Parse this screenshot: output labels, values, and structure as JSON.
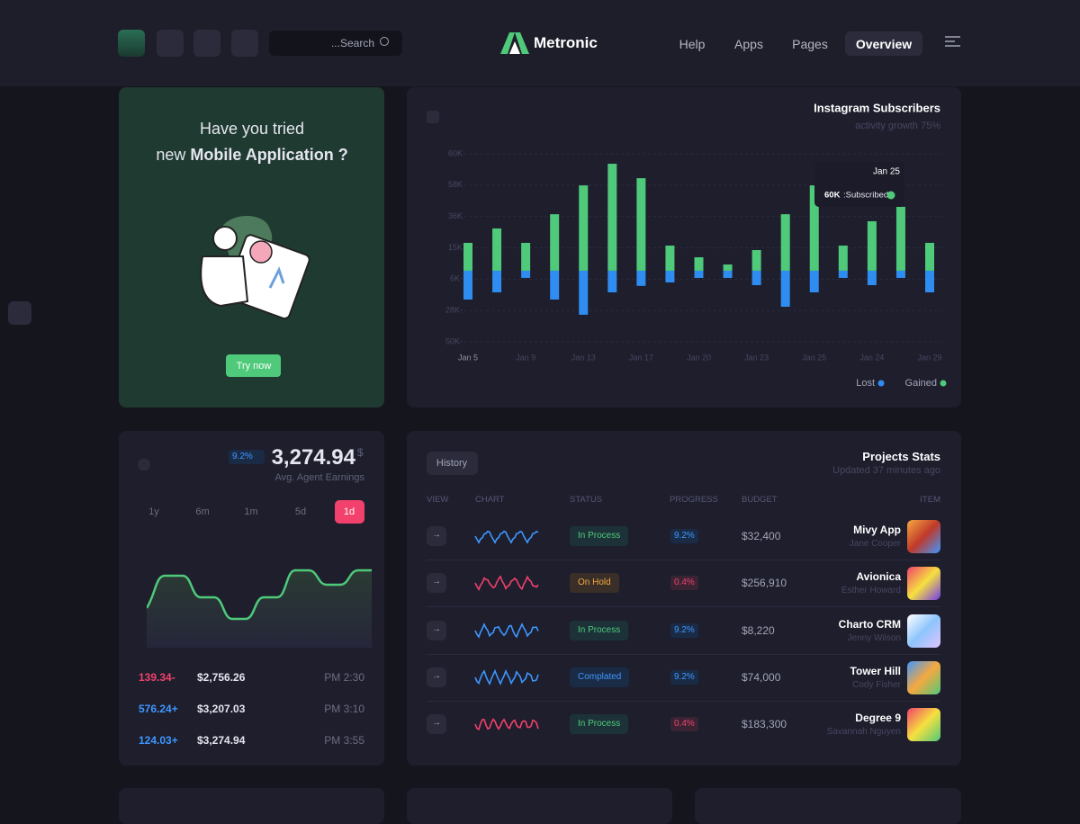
{
  "header": {
    "search": "...Search",
    "brand": "Metronic",
    "nav": [
      "Help",
      "Apps",
      "Pages",
      "Overview"
    ]
  },
  "promo": {
    "line1": "Have you tried",
    "line2_prefix": "new",
    "line2_bold": "Mobile Application ?",
    "button": "Try now"
  },
  "chart_data": {
    "type": "bar",
    "title": "Instagram Subscribers",
    "subtitle": "activity growth 75%",
    "y_axis_labels": [
      "60K",
      "58K",
      "36K",
      "15K",
      "6K-",
      "28K-",
      "50K-"
    ],
    "categories": [
      "Jan 5",
      null,
      "Jan 9",
      null,
      "Jan 13",
      null,
      "Jan 17",
      null,
      "Jan 20",
      null,
      "Jan 23",
      null,
      "Jan 25",
      null,
      "Jan 24",
      null,
      "Jan 29"
    ],
    "series": [
      {
        "name": "Lost",
        "color": "#2f8cf0",
        "values": [
          -14.8,
          -11.1,
          -3.7,
          -14.8,
          -22.6,
          -11.1,
          -7.8,
          -6,
          -3.7,
          -3.7,
          -7.4,
          -18.5,
          -11.1,
          -3.7,
          -7.4,
          -3.7,
          -11.1
        ]
      },
      {
        "name": "Gained",
        "color": "#4fc97a",
        "values": [
          14.3,
          21.7,
          14.3,
          29,
          43.8,
          54.9,
          47.5,
          12.9,
          6.9,
          3.2,
          10.6,
          29,
          43.8,
          12.9,
          25.4,
          32.8,
          14.3
        ]
      }
    ],
    "ylim": [
      -36.5,
      60
    ],
    "tooltip": {
      "title": "Jan 25",
      "value": "60K",
      "label": ":Subscribed"
    }
  },
  "earnings": {
    "change": "9.2%",
    "amount": "3,274.94",
    "currency": "$",
    "caption": "Avg. Agent Earnings",
    "periods": [
      "1y",
      "6m",
      "1m",
      "5d",
      "1d"
    ],
    "rows": [
      [
        "139.34-",
        "$2,756.26",
        "PM 2:30"
      ],
      [
        "576.24+",
        "$3,207.03",
        "PM 3:10"
      ],
      [
        "124.03+",
        "$3,274.94",
        "PM 3:55"
      ]
    ]
  },
  "projects": {
    "button": "History",
    "title": "Projects Stats",
    "subtitle": "Updated 37 minutes ago",
    "columns": [
      "VIEW",
      "CHART",
      "STATUS",
      "PROGRESS",
      "BUDGET",
      "ITEM"
    ],
    "rows": [
      {
        "status": "In Process",
        "progress": "9.2%",
        "budget": "$32,400",
        "name": "Mivy App",
        "person": "Jane Cooper"
      },
      {
        "status": "On Hold",
        "progress": "0.4%",
        "budget": "$256,910",
        "name": "Avionica",
        "person": "Esther Howard"
      },
      {
        "status": "In Process",
        "progress": "9.2%",
        "budget": "$8,220",
        "name": "Charto CRM",
        "person": "Jenny Wilson"
      },
      {
        "status": "Complated",
        "progress": "9.2%",
        "budget": "$74,000",
        "name": "Tower Hill",
        "person": "Cody Fisher"
      },
      {
        "status": "In Process",
        "progress": "0.4%",
        "budget": "$183,300",
        "name": "Degree 9",
        "person": "Savannah Nguyen"
      }
    ]
  }
}
